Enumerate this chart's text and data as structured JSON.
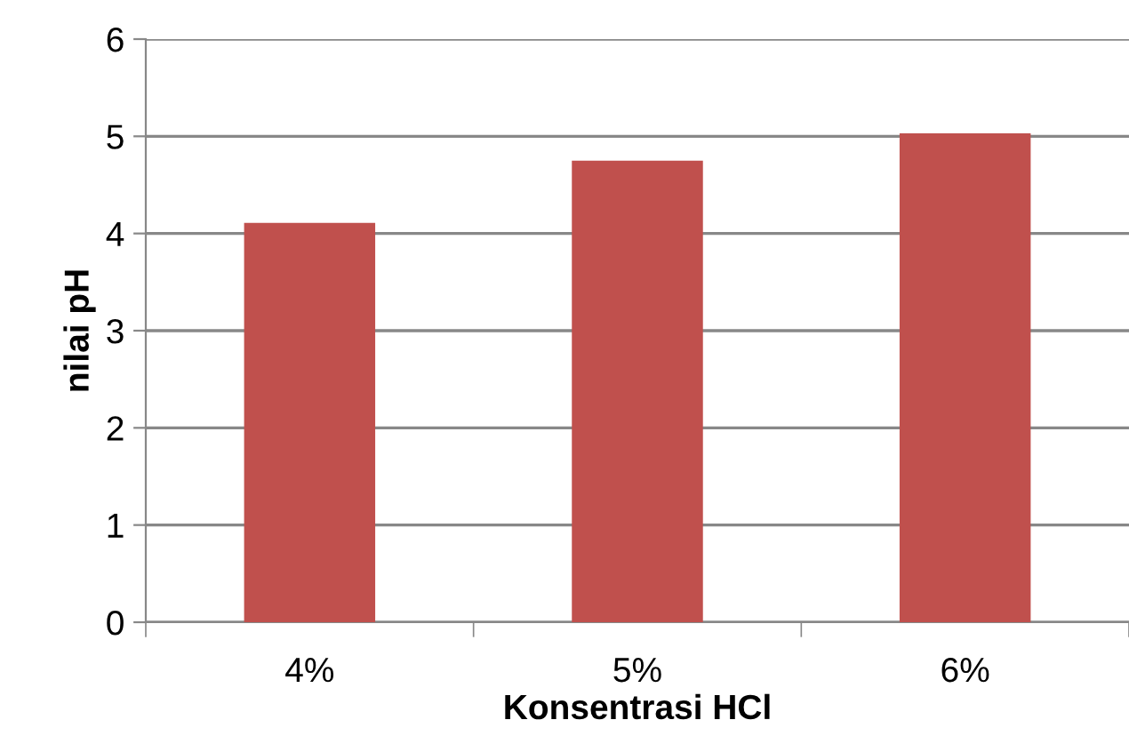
{
  "chart_data": {
    "type": "bar",
    "xlabel": "Konsentrasi HCl",
    "ylabel": "nilai pH",
    "categories": [
      "4%",
      "5%",
      "6%"
    ],
    "values": [
      4.11,
      4.75,
      5.03
    ],
    "color": "#c0504d",
    "ylim": [
      0,
      6
    ],
    "yticks": [
      0,
      1,
      2,
      3,
      4,
      5,
      6
    ],
    "grid": "y"
  }
}
